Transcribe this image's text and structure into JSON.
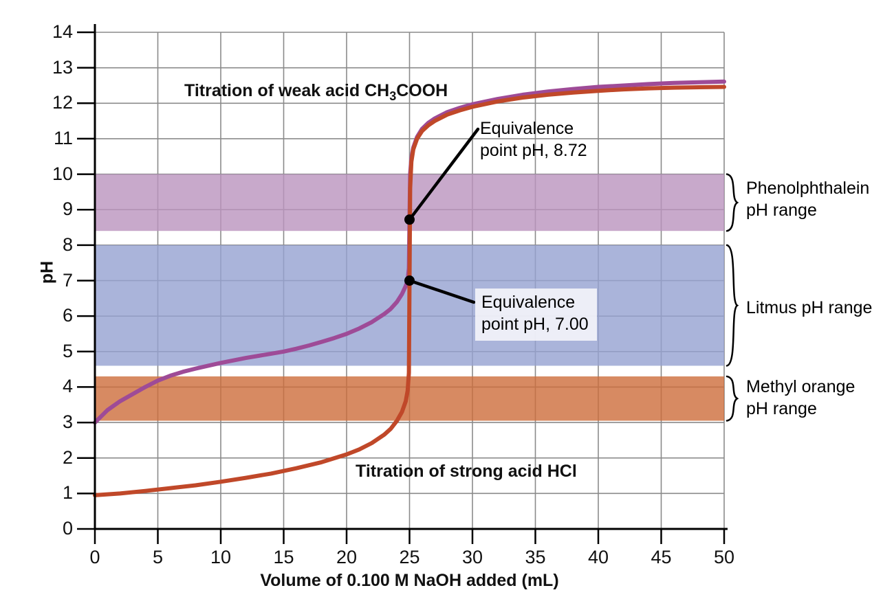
{
  "chart_data": {
    "type": "line",
    "title": "",
    "xlabel": "Volume of 0.100 M NaOH added (mL)",
    "ylabel": "pH",
    "xlim": [
      0,
      50
    ],
    "ylim": [
      0,
      14
    ],
    "x_ticks": [
      0,
      5,
      10,
      15,
      20,
      25,
      30,
      35,
      40,
      45,
      50
    ],
    "y_ticks": [
      0,
      1,
      2,
      3,
      4,
      5,
      6,
      7,
      8,
      9,
      10,
      11,
      12,
      13,
      14
    ],
    "grid": true,
    "gridline_color": "#8a8a8a",
    "series": [
      {
        "name": "Titration of weak acid CH3COOH",
        "color": "#9e4b97",
        "points": [
          [
            0,
            3.0
          ],
          [
            1,
            3.35
          ],
          [
            2,
            3.6
          ],
          [
            3,
            3.8
          ],
          [
            4,
            4.0
          ],
          [
            5,
            4.18
          ],
          [
            6,
            4.32
          ],
          [
            7,
            4.43
          ],
          [
            8,
            4.52
          ],
          [
            9,
            4.6
          ],
          [
            10,
            4.68
          ],
          [
            11,
            4.75
          ],
          [
            12,
            4.82
          ],
          [
            13,
            4.88
          ],
          [
            14,
            4.94
          ],
          [
            15,
            5.0
          ],
          [
            16,
            5.08
          ],
          [
            17,
            5.17
          ],
          [
            18,
            5.27
          ],
          [
            19,
            5.38
          ],
          [
            20,
            5.5
          ],
          [
            21,
            5.65
          ],
          [
            22,
            5.83
          ],
          [
            23,
            6.06
          ],
          [
            23.5,
            6.2
          ],
          [
            24,
            6.4
          ],
          [
            24.4,
            6.62
          ],
          [
            24.7,
            6.85
          ],
          [
            24.85,
            7.0
          ],
          [
            24.95,
            7.35
          ],
          [
            25,
            8.72
          ],
          [
            25.05,
            10.0
          ],
          [
            25.15,
            10.45
          ],
          [
            25.3,
            10.75
          ],
          [
            25.6,
            11.05
          ],
          [
            26,
            11.28
          ],
          [
            26.5,
            11.45
          ],
          [
            27,
            11.57
          ],
          [
            28,
            11.75
          ],
          [
            29,
            11.87
          ],
          [
            30,
            11.97
          ],
          [
            32,
            12.12
          ],
          [
            34,
            12.24
          ],
          [
            36,
            12.33
          ],
          [
            38,
            12.4
          ],
          [
            40,
            12.46
          ],
          [
            42,
            12.5
          ],
          [
            44,
            12.54
          ],
          [
            46,
            12.57
          ],
          [
            48,
            12.59
          ],
          [
            50,
            12.61
          ]
        ]
      },
      {
        "name": "Titration of strong acid HCl",
        "color": "#c04829",
        "points": [
          [
            0,
            0.95
          ],
          [
            2,
            1.0
          ],
          [
            4,
            1.07
          ],
          [
            6,
            1.15
          ],
          [
            8,
            1.23
          ],
          [
            10,
            1.33
          ],
          [
            12,
            1.44
          ],
          [
            14,
            1.56
          ],
          [
            16,
            1.71
          ],
          [
            18,
            1.88
          ],
          [
            20,
            2.1
          ],
          [
            21,
            2.24
          ],
          [
            22,
            2.42
          ],
          [
            23,
            2.66
          ],
          [
            23.5,
            2.82
          ],
          [
            24,
            3.05
          ],
          [
            24.4,
            3.3
          ],
          [
            24.7,
            3.6
          ],
          [
            24.85,
            3.9
          ],
          [
            24.95,
            4.4
          ],
          [
            25,
            7.0
          ],
          [
            25.05,
            9.6
          ],
          [
            25.15,
            10.35
          ],
          [
            25.3,
            10.7
          ],
          [
            25.6,
            11.0
          ],
          [
            26,
            11.22
          ],
          [
            26.5,
            11.38
          ],
          [
            27,
            11.5
          ],
          [
            28,
            11.68
          ],
          [
            29,
            11.8
          ],
          [
            30,
            11.9
          ],
          [
            32,
            12.05
          ],
          [
            34,
            12.16
          ],
          [
            36,
            12.24
          ],
          [
            38,
            12.3
          ],
          [
            40,
            12.35
          ],
          [
            42,
            12.39
          ],
          [
            44,
            12.42
          ],
          [
            46,
            12.44
          ],
          [
            48,
            12.45
          ],
          [
            50,
            12.46
          ]
        ]
      }
    ],
    "bands": [
      {
        "name": "phenolphthalein",
        "label_lines": [
          "Phenolphthalein",
          "pH range"
        ],
        "ph_from": 8.4,
        "ph_to": 10.0,
        "color": "rgba(186,147,190,0.8)"
      },
      {
        "name": "litmus",
        "label_lines": [
          "Litmus pH range"
        ],
        "ph_from": 4.6,
        "ph_to": 8.0,
        "color": "rgba(149,161,209,0.8)"
      },
      {
        "name": "methyl-orange",
        "label_lines": [
          "Methyl orange",
          "pH range"
        ],
        "ph_from": 3.05,
        "ph_to": 4.3,
        "color": "rgba(205,109,59,0.8)"
      }
    ],
    "annotations": [
      {
        "lines": [
          "Equivalence",
          "point pH, 8.72"
        ],
        "x": 25,
        "y": 8.72
      },
      {
        "lines": [
          "Equivalence",
          "point pH, 7.00"
        ],
        "x": 25,
        "y": 7.0
      }
    ]
  },
  "labels": {
    "weak_acid": {
      "prefix": "Titration of weak acid CH",
      "sub": "3",
      "suffix": "COOH"
    },
    "strong_acid": "Titration of strong acid HCl"
  }
}
